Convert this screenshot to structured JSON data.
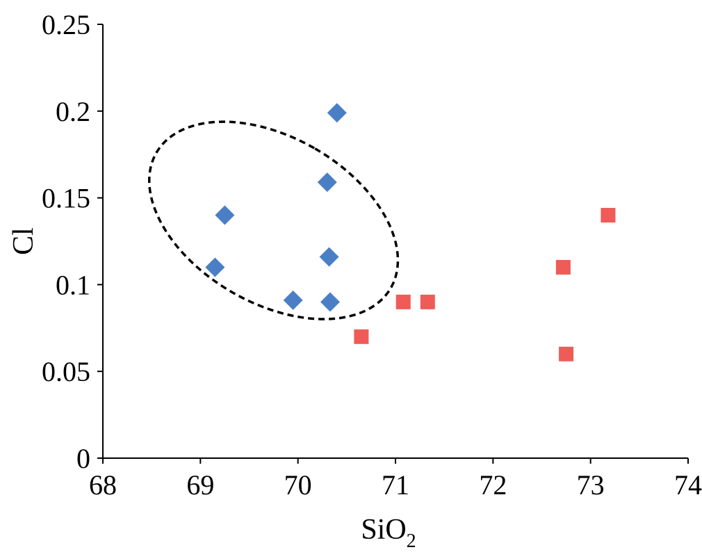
{
  "chart_data": {
    "type": "scatter",
    "xlabel": "SiO",
    "xlabel_subscript": "2",
    "ylabel": "Cl",
    "xlim": [
      68,
      74
    ],
    "ylim": [
      0,
      0.25
    ],
    "x_ticks": [
      "68",
      "69",
      "70",
      "71",
      "72",
      "73",
      "74"
    ],
    "y_ticks": [
      "0",
      "0.05",
      "0.1",
      "0.15",
      "0.2",
      "0.25"
    ],
    "grid": false,
    "legend": "none",
    "series": [
      {
        "marker": "diamond",
        "color": "#4a7fc6",
        "points": [
          {
            "x": 69.15,
            "y": 0.11
          },
          {
            "x": 69.25,
            "y": 0.14
          },
          {
            "x": 69.95,
            "y": 0.091
          },
          {
            "x": 70.3,
            "y": 0.159
          },
          {
            "x": 70.32,
            "y": 0.116
          },
          {
            "x": 70.33,
            "y": 0.09
          },
          {
            "x": 70.4,
            "y": 0.199
          }
        ]
      },
      {
        "marker": "square",
        "color": "#ef5b57",
        "points": [
          {
            "x": 70.65,
            "y": 0.07
          },
          {
            "x": 71.08,
            "y": 0.09
          },
          {
            "x": 71.33,
            "y": 0.09
          },
          {
            "x": 72.72,
            "y": 0.11
          },
          {
            "x": 72.75,
            "y": 0.06
          },
          {
            "x": 73.18,
            "y": 0.14
          }
        ]
      }
    ],
    "annotations": [
      {
        "type": "dashed-ellipse",
        "center": {
          "x": 69.75,
          "y": 0.137
        },
        "rx": 0.85,
        "ry": 0.078,
        "rotation_deg": -60,
        "color": "#000000"
      }
    ]
  }
}
